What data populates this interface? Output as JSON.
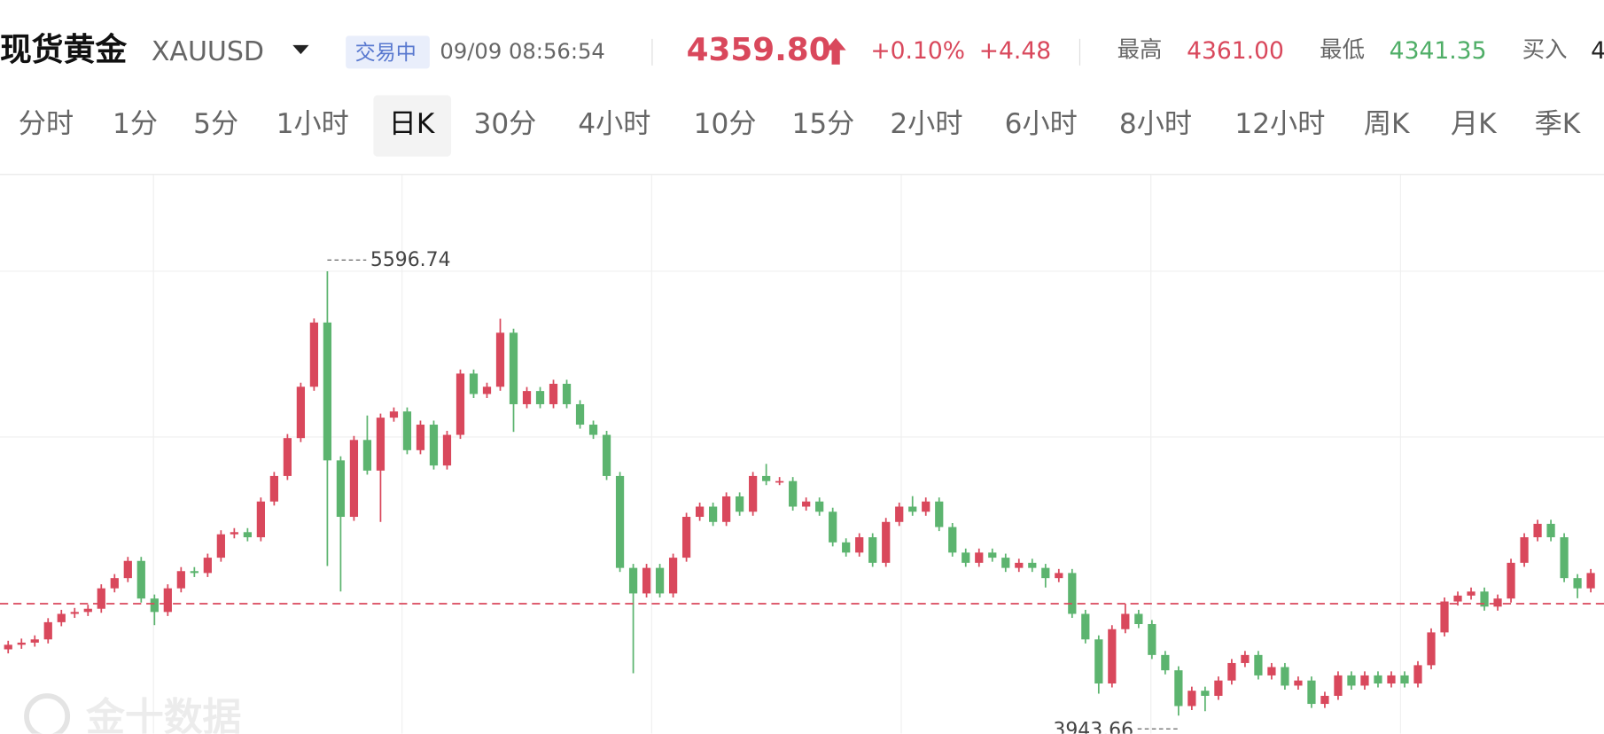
{
  "header": {
    "title": "现货黄金",
    "symbol": "XAUUSD",
    "status": "交易中",
    "time": "09/09 08:56:54"
  },
  "quote": {
    "price": {
      "value": 4359.8,
      "label": "4359.80"
    },
    "change_pct": "+0.10%",
    "change": "+4.48",
    "high_label": "最高",
    "high": "4361.00",
    "low_label": "最低",
    "low": "4341.35",
    "bid_label": "买入",
    "bid": "4"
  },
  "tabs": [
    "分时",
    "1分",
    "5分",
    "1小时",
    "日K",
    "30分",
    "4小时",
    "10分",
    "15分",
    "2小时",
    "6小时",
    "8小时",
    "12小时",
    "周K",
    "月K",
    "季K"
  ],
  "selected_tab": 4,
  "kline": {
    "type": "candlestick",
    "ylim": [
      3876,
      5951
    ],
    "up_color": "#d9485c",
    "down_color": "#5cb46f",
    "max_label": 5596.74,
    "min_label": 3943.66,
    "open": [
      4190,
      4207,
      4215,
      4227,
      4291,
      4322,
      4329,
      4341,
      4417,
      4455,
      4519,
      4379,
      4329,
      4417,
      4481,
      4474,
      4531,
      4618,
      4626,
      4607,
      4740,
      4835,
      4976,
      5167,
      5406,
      4893,
      4683,
      4969,
      4855,
      5052,
      5075,
      4931,
      5026,
      4874,
      4988,
      5216,
      5140,
      5167,
      5368,
      5102,
      5151,
      5102,
      5178,
      5102,
      5026,
      4988,
      4835,
      4493,
      4398,
      4493,
      4398,
      4531,
      4683,
      4721,
      4664,
      4759,
      4702,
      4835,
      4816,
      4816,
      4721,
      4740,
      4702,
      4588,
      4550,
      4607,
      4512,
      4664,
      4721,
      4702,
      4740,
      4645,
      4550,
      4512,
      4550,
      4531,
      4493,
      4512,
      4493,
      4455,
      4474,
      4322,
      4227,
      4063,
      4265,
      4322,
      4284,
      4169,
      4112,
      3979,
      4036,
      4017,
      4074,
      4139,
      4169,
      4093,
      4124,
      4055,
      4074,
      3987,
      4017,
      4093,
      4055,
      4093,
      4063,
      4093,
      4063,
      4131,
      4253,
      4368,
      4390,
      4405,
      4349,
      4379,
      4512,
      4607,
      4657,
      4607,
      4455,
      4417
    ],
    "high": [
      4222,
      4230,
      4242,
      4306,
      4337,
      4344,
      4356,
      4432,
      4470,
      4534,
      4534,
      4394,
      4432,
      4496,
      4496,
      4546,
      4633,
      4641,
      4641,
      4755,
      4850,
      4991,
      5182,
      5421,
      5596.74,
      4908,
      4984,
      5060,
      5067,
      5090,
      5090,
      5041,
      5041,
      5003,
      5231,
      5231,
      5182,
      5420,
      5383,
      5166,
      5166,
      5193,
      5193,
      5117,
      5041,
      5003,
      4850,
      4508,
      4508,
      4508,
      4546,
      4698,
      4736,
      4736,
      4774,
      4774,
      4850,
      4880,
      4831,
      4831,
      4755,
      4755,
      4717,
      4603,
      4622,
      4622,
      4679,
      4736,
      4760,
      4755,
      4755,
      4660,
      4565,
      4565,
      4565,
      4546,
      4527,
      4527,
      4508,
      4489,
      4489,
      4337,
      4242,
      4280,
      4360,
      4337,
      4299,
      4184,
      4127,
      4051,
      4051,
      4089,
      4154,
      4184,
      4184,
      4139,
      4139,
      4089,
      4089,
      4032,
      4108,
      4108,
      4108,
      4108,
      4108,
      4108,
      4146,
      4268,
      4383,
      4405,
      4420,
      4420,
      4394,
      4527,
      4622,
      4672,
      4672,
      4622,
      4470,
      4489
    ],
    "low": [
      4175,
      4192,
      4200,
      4212,
      4276,
      4307,
      4314,
      4326,
      4402,
      4440,
      4364,
      4280,
      4314,
      4402,
      4459,
      4459,
      4516,
      4603,
      4592,
      4592,
      4725,
      4820,
      4961,
      5152,
      4500,
      4405,
      4668,
      4840,
      4664,
      5037,
      4916,
      4916,
      4859,
      4859,
      4973,
      5125,
      5125,
      5152,
      4999,
      5087,
      5087,
      5087,
      5087,
      5011,
      4973,
      4820,
      4478,
      4101,
      4383,
      4383,
      4383,
      4516,
      4668,
      4649,
      4649,
      4687,
      4687,
      4801,
      4801,
      4706,
      4706,
      4687,
      4573,
      4535,
      4535,
      4497,
      4497,
      4649,
      4687,
      4687,
      4630,
      4535,
      4497,
      4497,
      4516,
      4478,
      4478,
      4478,
      4420,
      4440,
      4307,
      4212,
      4025,
      4048,
      4250,
      4269,
      4154,
      4097,
      3943.66,
      3964,
      3960,
      4002,
      4059,
      4124,
      4078,
      4078,
      4040,
      4040,
      3972,
      3972,
      4002,
      4040,
      4040,
      4048,
      4048,
      4048,
      4048,
      4116,
      4238,
      4353,
      4375,
      4334,
      4334,
      4364,
      4497,
      4592,
      4592,
      4440,
      4380,
      4402
    ],
    "close": [
      4207,
      4215,
      4227,
      4291,
      4322,
      4329,
      4341,
      4417,
      4455,
      4519,
      4379,
      4329,
      4417,
      4481,
      4474,
      4531,
      4618,
      4626,
      4607,
      4740,
      4835,
      4976,
      5167,
      5406,
      4893,
      4683,
      4969,
      4855,
      5052,
      5075,
      4931,
      5026,
      4874,
      4988,
      5216,
      5140,
      5167,
      5368,
      5102,
      5151,
      5102,
      5178,
      5102,
      5026,
      4988,
      4835,
      4493,
      4398,
      4493,
      4398,
      4531,
      4683,
      4721,
      4664,
      4759,
      4702,
      4835,
      4816,
      4816,
      4721,
      4740,
      4702,
      4588,
      4550,
      4607,
      4512,
      4664,
      4721,
      4702,
      4740,
      4645,
      4550,
      4512,
      4550,
      4531,
      4493,
      4512,
      4493,
      4455,
      4474,
      4322,
      4227,
      4063,
      4265,
      4322,
      4284,
      4169,
      4112,
      3979,
      4036,
      4017,
      4074,
      4139,
      4169,
      4093,
      4124,
      4055,
      4074,
      3987,
      4017,
      4093,
      4055,
      4093,
      4063,
      4093,
      4063,
      4131,
      4253,
      4368,
      4390,
      4405,
      4349,
      4379,
      4512,
      4607,
      4657,
      4607,
      4455,
      4417,
      4474
    ]
  },
  "watermark": "金十数据"
}
